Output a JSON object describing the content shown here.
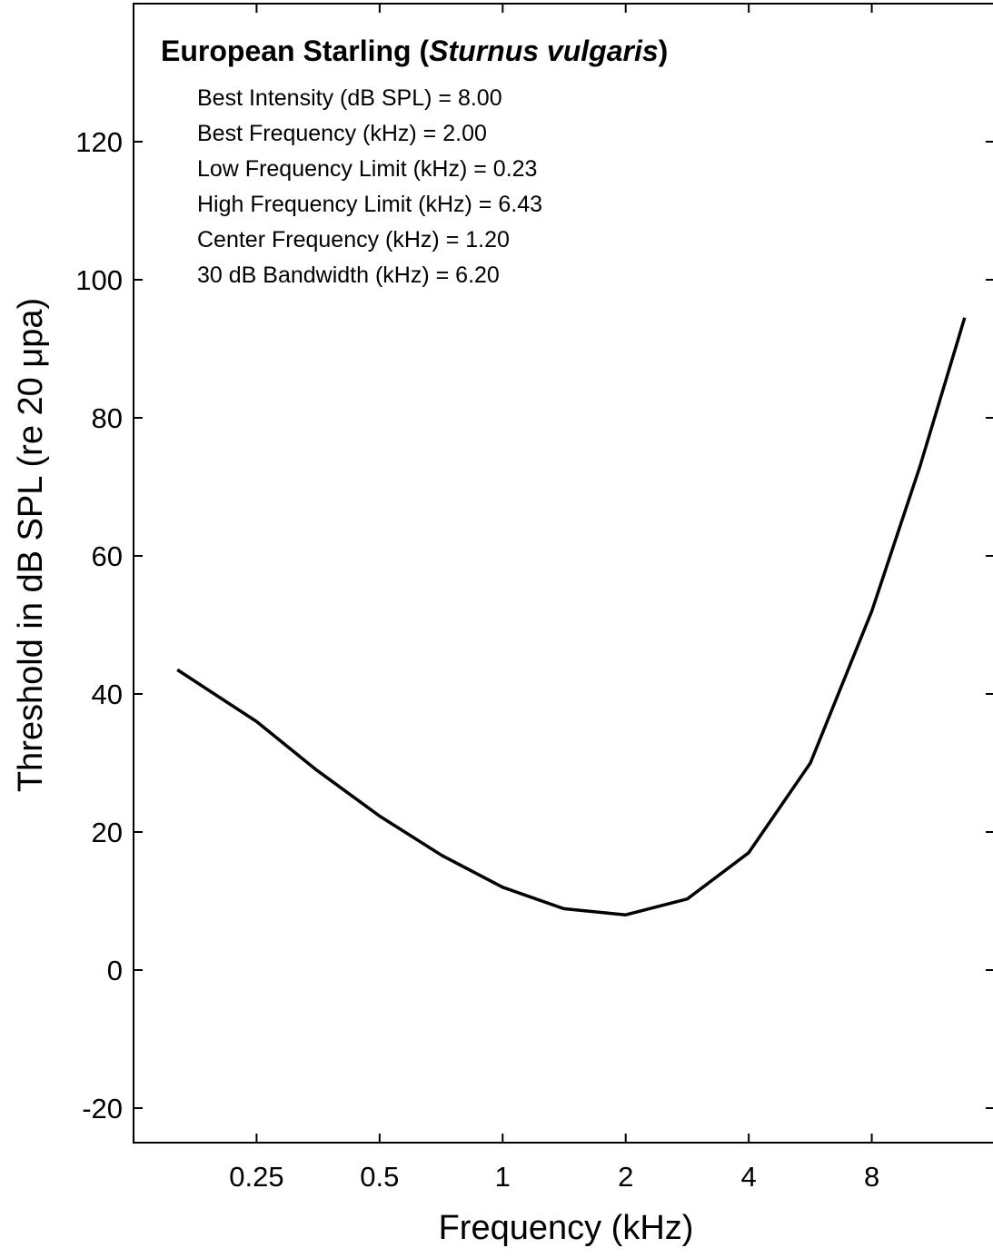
{
  "chart_data": {
    "type": "line",
    "title": {
      "prefix": "European Starling (",
      "species": "Sturnus vulgaris",
      "suffix": ")"
    },
    "stats": [
      "Best Intensity (dB SPL) = 8.00",
      "Best Frequency (kHz) = 2.00",
      "Low Frequency Limit (kHz) = 0.23",
      "High Frequency Limit (kHz) = 6.43",
      "Center Frequency (kHz) = 1.20",
      "30 dB Bandwidth (kHz) = 6.20"
    ],
    "xlabel": "Frequency (kHz)",
    "ylabel": "Threshold in dB SPL (re 20 μpa)",
    "x_scale": "log2",
    "xlim": [
      0.125,
      16
    ],
    "ylim": [
      -25,
      140
    ],
    "xticks": [
      {
        "value": 0.25,
        "label": "0.25"
      },
      {
        "value": 0.5,
        "label": "0.5"
      },
      {
        "value": 1,
        "label": "1"
      },
      {
        "value": 2,
        "label": "2"
      },
      {
        "value": 4,
        "label": "4"
      },
      {
        "value": 8,
        "label": "8"
      }
    ],
    "yticks": [
      {
        "value": -20,
        "label": "-20"
      },
      {
        "value": 0,
        "label": "0"
      },
      {
        "value": 20,
        "label": "20"
      },
      {
        "value": 40,
        "label": "40"
      },
      {
        "value": 60,
        "label": "60"
      },
      {
        "value": 80,
        "label": "80"
      },
      {
        "value": 100,
        "label": "100"
      },
      {
        "value": 120,
        "label": "120"
      }
    ],
    "series": [
      {
        "x": [
          0.16,
          0.25,
          0.35,
          0.5,
          0.71,
          1.0,
          1.41,
          2.0,
          2.83,
          4.0,
          5.66,
          8.0,
          10.5,
          13.5
        ],
        "y": [
          43.5,
          36.0,
          29.0,
          22.3,
          16.6,
          12.0,
          8.9,
          8.0,
          10.3,
          17.0,
          30.0,
          52.0,
          73.0,
          94.5
        ]
      }
    ],
    "line_color": "#000000",
    "grid": false
  }
}
